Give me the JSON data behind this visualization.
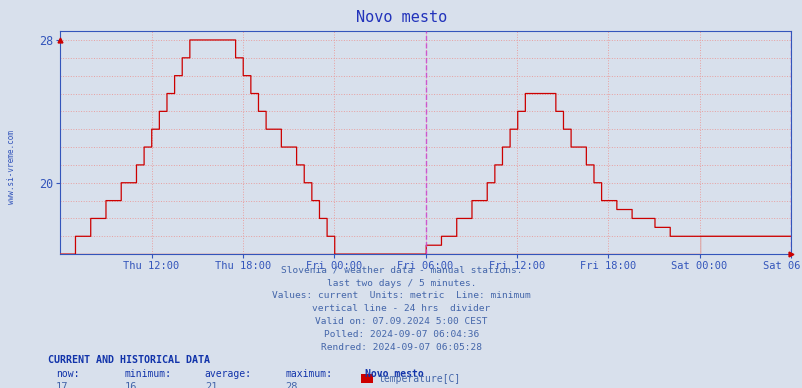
{
  "title": "Novo mesto",
  "title_color": "#2233bb",
  "bg_color": "#d8e0ec",
  "plot_bg_color": "#d8e0ec",
  "line_color": "#cc0000",
  "line_color2": "#ddaaaa",
  "grid_color": "#e8a0a0",
  "grid_style": ":",
  "axis_color": "#3355bb",
  "tick_color": "#3355bb",
  "divider_color": "#cc44cc",
  "sidebar_text": "www.si-vreme.com",
  "sidebar_color": "#3355bb",
  "x_labels": [
    "Thu 12:00",
    "Thu 18:00",
    "Fri 00:00",
    "Fri 06:00",
    "Fri 12:00",
    "Fri 18:00",
    "Sat 00:00",
    "Sat 06:00"
  ],
  "xtick_positions": [
    6,
    12,
    18,
    24,
    30,
    36,
    42,
    48
  ],
  "ytick_positions": [
    20,
    28
  ],
  "ytick_labels": [
    "20",
    "28"
  ],
  "ylim_min": 16,
  "ylim_max": 28.5,
  "footer_lines": [
    "Slovenia / weather data - manual stations.",
    "last two days / 5 minutes.",
    "Values: current  Units: metric  Line: minimum",
    "vertical line - 24 hrs  divider",
    "Valid on: 07.09.2024 5:00 CEST",
    "Polled: 2024-09-07 06:04:36",
    "Rendred: 2024-09-07 06:05:28"
  ],
  "footer_color": "#4466aa",
  "bottom_label": "CURRENT AND HISTORICAL DATA",
  "bottom_label_color": "#1133aa",
  "bottom_headers": [
    "now:",
    "minimum:",
    "average:",
    "maximum:",
    "Novo mesto"
  ],
  "bottom_values": [
    "17",
    "16",
    "21",
    "28"
  ],
  "bottom_series": "temperature[C]",
  "legend_rect_color": "#cc0000"
}
